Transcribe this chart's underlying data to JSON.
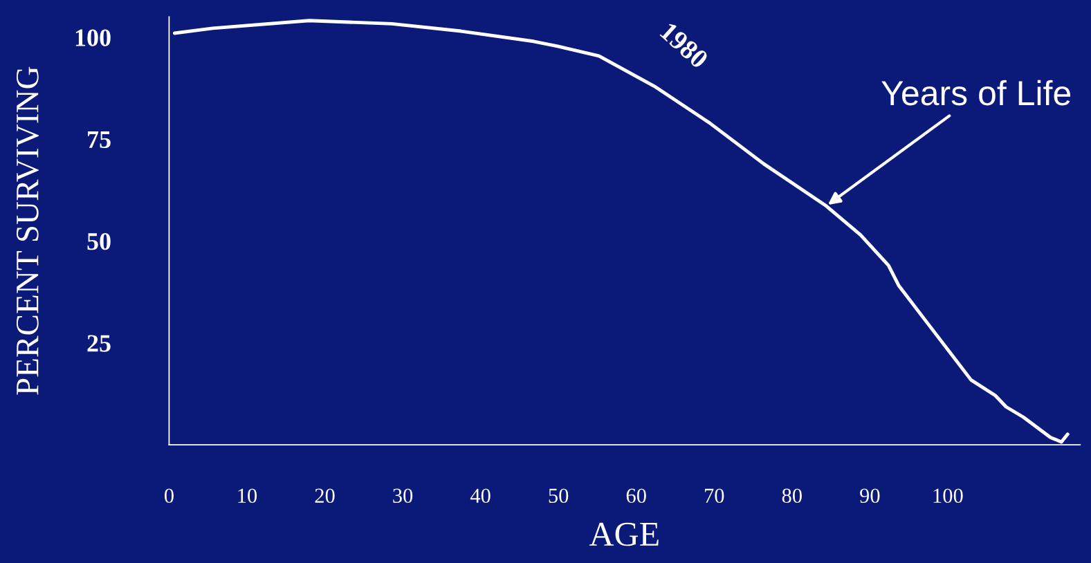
{
  "chart_data": {
    "type": "line",
    "xlabel": "AGE",
    "ylabel": "PERCENT SURVIVING",
    "x": [
      0.7,
      5.6,
      18,
      28.6,
      37.5,
      46.8,
      49.9,
      55.2,
      62.3,
      69.4,
      76.4,
      84.4,
      88.8,
      92.4,
      93.7,
      97.7,
      103,
      106.1,
      107.5,
      109.7,
      113.2,
      114.6,
      115.4
    ],
    "series": [
      {
        "color": "#ffffff",
        "values": [
          101,
          102.2,
          104.1,
          103.3,
          101.5,
          99.0,
          97.8,
          95.4,
          88,
          79,
          68.9,
          58.6,
          51.5,
          44,
          39.1,
          29.1,
          15.9,
          12.1,
          9.3,
          6.8,
          1.8,
          0.7,
          2.6
        ]
      }
    ],
    "xlim": [
      0,
      117
    ],
    "xticks": [
      0,
      10,
      20,
      30,
      40,
      50,
      60,
      70,
      80,
      90,
      100
    ],
    "ylim": [
      0,
      105
    ],
    "yticks": [
      25,
      50,
      75,
      100
    ],
    "grid": false,
    "marker": "none",
    "line_style": "solid",
    "annotations": [
      {
        "text": "1980",
        "x": 62.3,
        "y": 88
      },
      {
        "text": "Years of Life",
        "x": 84.4,
        "y": 58.6
      }
    ]
  }
}
